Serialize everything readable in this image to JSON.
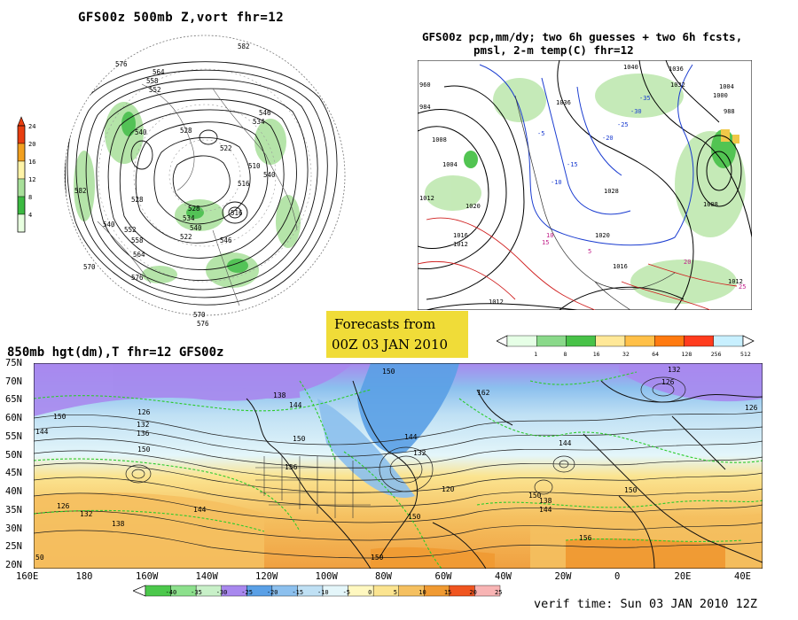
{
  "panels": {
    "top_left": {
      "title": "GFS00z  500mb Z,vort    fhr=12"
    },
    "top_right": {
      "title_line1": "GFS00z pcp,mm/dy; two 6h guesses + two 6h fcsts,",
      "title_line2": "pmsl, 2-m temp(C)  fhr=12"
    },
    "bottom": {
      "title": "850mb hgt(dm),T  fhr=12 GFS00z"
    }
  },
  "forecast_box": {
    "line1": "Forecasts from",
    "line2": "00Z 03 JAN 2010",
    "color": "#f0dc38"
  },
  "verif_time": "verif time: Sun 03 JAN 2010 12Z",
  "vort_colorbar": {
    "labels": [
      "24",
      "20",
      "16",
      "12",
      "8",
      "4"
    ],
    "colors": [
      "#e83e10",
      "#f2a020",
      "#fff4a8",
      "#a8e09a",
      "#3cba42",
      "#e8ffe0"
    ]
  },
  "precip_colorbar": {
    "labels": [
      "1",
      "8",
      "16",
      "32",
      "64",
      "128",
      "256",
      "512"
    ],
    "colors": [
      "#e6ffe6",
      "#8ad98a",
      "#48c248",
      "#ffe898",
      "#ffc048",
      "#ff7a10",
      "#ff3c1e",
      "#c8f0ff"
    ]
  },
  "temp_colorbar": {
    "labels": [
      "-40",
      "-35",
      "-30",
      "-25",
      "-20",
      "-15",
      "-10",
      "-5",
      "0",
      "5",
      "10",
      "15",
      "20",
      "25"
    ],
    "colors": [
      "#4cc84c",
      "#8ce08c",
      "#c8f0c8",
      "#a888ee",
      "#5aa0e6",
      "#8cc0ee",
      "#bfe0f4",
      "#e4f6fa",
      "#fff8c0",
      "#fbe490",
      "#f5c060",
      "#f09a32",
      "#f05520",
      "#f8b4b4"
    ]
  },
  "bottom_map": {
    "lat_labels": [
      "75N",
      "70N",
      "65N",
      "60N",
      "55N",
      "50N",
      "45N",
      "40N",
      "35N",
      "30N",
      "25N",
      "20N"
    ],
    "lon_labels": [
      "160E",
      "180",
      "160W",
      "140W",
      "120W",
      "100W",
      "80W",
      "60W",
      "40W",
      "20W",
      "0",
      "20E",
      "40E"
    ],
    "contour_labels": [
      "150",
      "138",
      "144",
      "150",
      "126",
      "132",
      "136",
      "144",
      "150",
      "150",
      "156",
      "150",
      "144",
      "162",
      "132",
      "126",
      "126",
      "144",
      "132",
      "120",
      "138",
      "144",
      "150",
      "156",
      "150",
      "144",
      "126",
      "132",
      "138",
      "150",
      "50"
    ]
  },
  "top_left_map": {
    "contour_labels": [
      "582",
      "576",
      "564",
      "558",
      "552",
      "546",
      "540",
      "528",
      "534",
      "540",
      "522",
      "516",
      "510",
      "516",
      "528",
      "540",
      "546",
      "552",
      "558",
      "564",
      "570",
      "576",
      "582",
      "540",
      "534",
      "528",
      "522",
      "570",
      "576"
    ]
  },
  "top_right_map": {
    "contour_labels": [
      "1012",
      "960",
      "984",
      "1008",
      "1004",
      "1012",
      "1020",
      "1016",
      "1036",
      "1040",
      "1036",
      "1032",
      "1004",
      "1000",
      "988",
      "1008",
      "1028",
      "1020",
      "1016",
      "1012",
      "1012",
      "-5",
      "-10",
      "-15",
      "-20",
      "-25",
      "-30",
      "-35",
      "5",
      "10",
      "15",
      "20",
      "25"
    ]
  }
}
